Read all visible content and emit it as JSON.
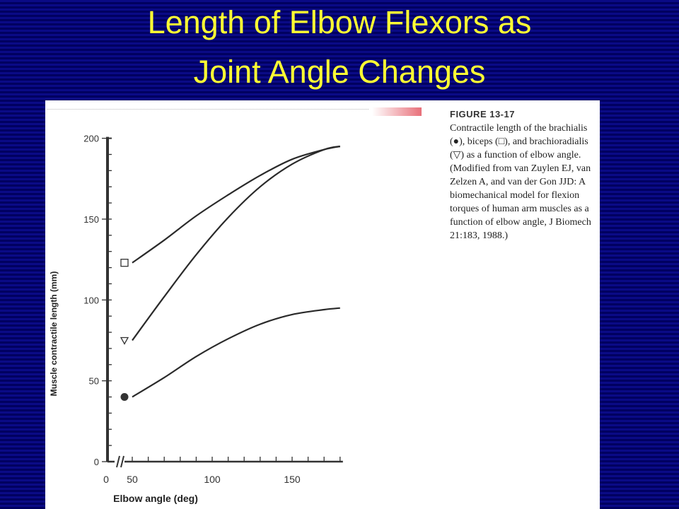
{
  "slide": {
    "title_line1": "Length of Elbow Flexors as",
    "title_line2": "Joint Angle Changes"
  },
  "figure": {
    "label": "FIGURE 13-17",
    "caption": "Contractile length of the brachialis (●), biceps (□), and brachioradialis (▽) as a function of elbow angle. (Modified from van Zuylen EJ, van Zelzen A, and van der Gon JJD: A biomechanical model for flexion torques of human arm muscles as a function of elbow angle, J Biomech 21:183, 1988.)"
  },
  "chart_data": {
    "type": "line",
    "title": "",
    "xlabel": "Elbow angle (deg)",
    "ylabel": "Muscle contractile length (mm)",
    "xlim": [
      0,
      180
    ],
    "ylim": [
      0,
      200
    ],
    "x_ticks": [
      0,
      50,
      100,
      150
    ],
    "y_ticks": [
      0,
      50,
      100,
      150,
      200
    ],
    "axis_break": true,
    "grid": false,
    "series": [
      {
        "marker": "square",
        "x": [
          50,
          70,
          90,
          110,
          130,
          150,
          170,
          180
        ],
        "y": [
          123,
          137,
          152,
          165,
          177,
          187,
          193,
          195
        ]
      },
      {
        "marker": "triangle",
        "x": [
          50,
          70,
          90,
          110,
          130,
          150,
          170,
          180
        ],
        "y": [
          75,
          102,
          128,
          151,
          170,
          184,
          193,
          195
        ]
      },
      {
        "marker": "circle",
        "x": [
          50,
          70,
          90,
          110,
          130,
          150,
          170,
          180
        ],
        "y": [
          40,
          52,
          65,
          76,
          85,
          91,
          94,
          95
        ]
      }
    ]
  }
}
